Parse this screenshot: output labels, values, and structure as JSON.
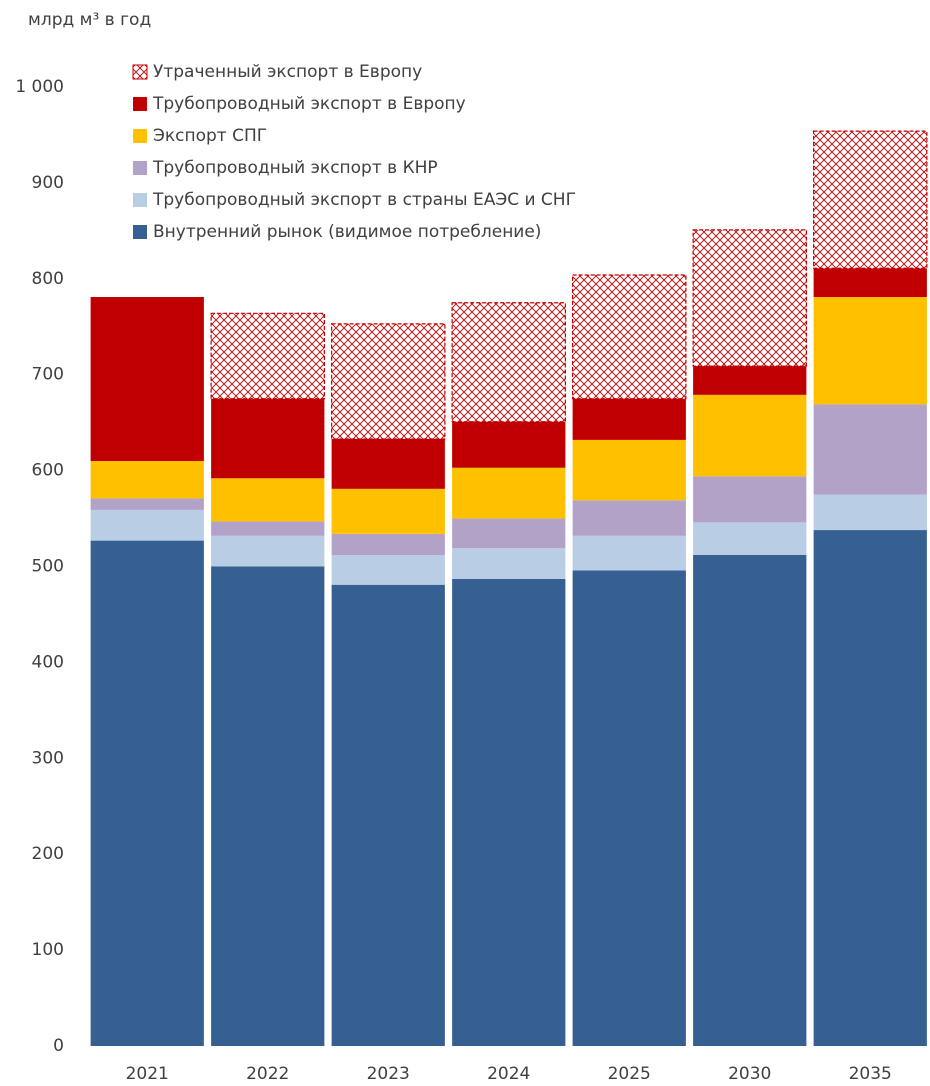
{
  "chart_data": {
    "type": "stacked_bar",
    "title": "млрд м³ в год",
    "categories": [
      "2021",
      "2022",
      "2023",
      "2024",
      "2025",
      "2030",
      "2035"
    ],
    "series": [
      {
        "name": "Внутренний рынок (видимое потребление)",
        "color": "#376092",
        "values": [
          527,
          500,
          481,
          487,
          496,
          512,
          538
        ]
      },
      {
        "name": "Трубопроводный экспорт в страны ЕАЭС и СНГ",
        "color": "#b9cde5",
        "values": [
          32,
          32,
          31,
          32,
          36,
          34,
          37
        ]
      },
      {
        "name": "Трубопроводный экспорт в КНР",
        "color": "#b3a2c7",
        "values": [
          12,
          15,
          22,
          31,
          37,
          48,
          94
        ]
      },
      {
        "name": "Экспорт СПГ",
        "color": "#ffc000",
        "values": [
          39,
          45,
          47,
          53,
          63,
          85,
          112
        ]
      },
      {
        "name": "Трубопроводный экспорт в Европу",
        "color": "#c00000",
        "values": [
          171,
          83,
          52,
          48,
          43,
          30,
          30
        ]
      },
      {
        "name": "Утраченный экспорт в Европу",
        "color": "#c00000",
        "pattern": "crosshatch",
        "values": [
          0,
          89,
          120,
          124,
          129,
          142,
          143
        ]
      }
    ],
    "ylim": [
      0,
      1000
    ],
    "yticks": [
      0,
      100,
      200,
      300,
      400,
      500,
      600,
      700,
      800,
      900,
      {
        "value": 1000,
        "label": "1 000"
      }
    ],
    "legend": "top-left"
  }
}
